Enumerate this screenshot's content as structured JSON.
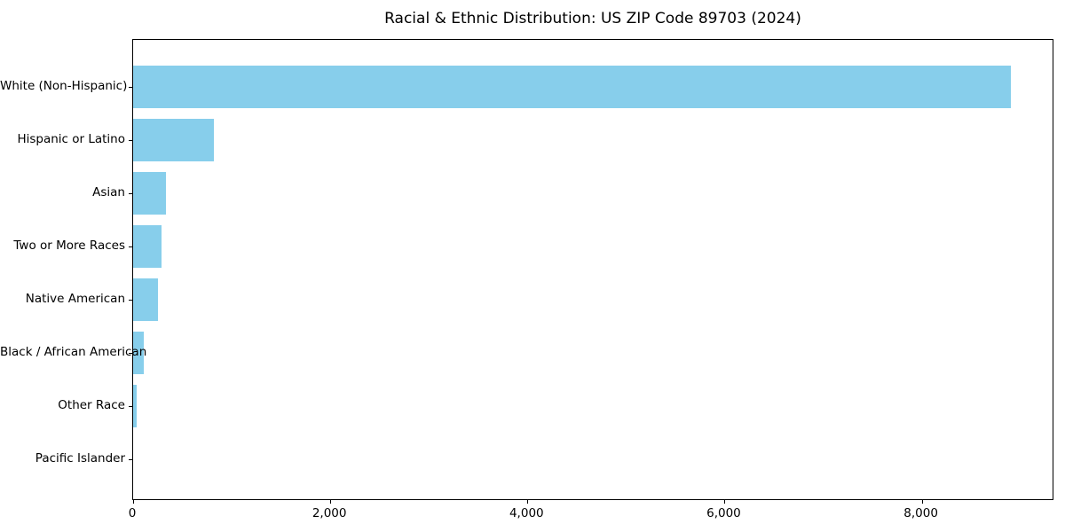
{
  "chart_data": {
    "type": "bar",
    "orientation": "horizontal",
    "title": "Racial & Ethnic Distribution: US ZIP Code 89703 (2024)",
    "categories": [
      "White (Non-Hispanic)",
      "Hispanic or Latino",
      "Asian",
      "Two or More Races",
      "Native American",
      "Black / African American",
      "Other Race",
      "Pacific Islander"
    ],
    "values": [
      8900,
      820,
      330,
      285,
      250,
      110,
      38,
      0
    ],
    "xlabel": "",
    "ylabel": "",
    "xlim": [
      0,
      9345
    ],
    "xticks": [
      0,
      2000,
      4000,
      6000,
      8000
    ],
    "xtick_labels": [
      "0",
      "2,000",
      "4,000",
      "6,000",
      "8,000"
    ],
    "bar_color": "#87CEEB",
    "frame_color": "#000000",
    "grid": false,
    "legend": null
  }
}
